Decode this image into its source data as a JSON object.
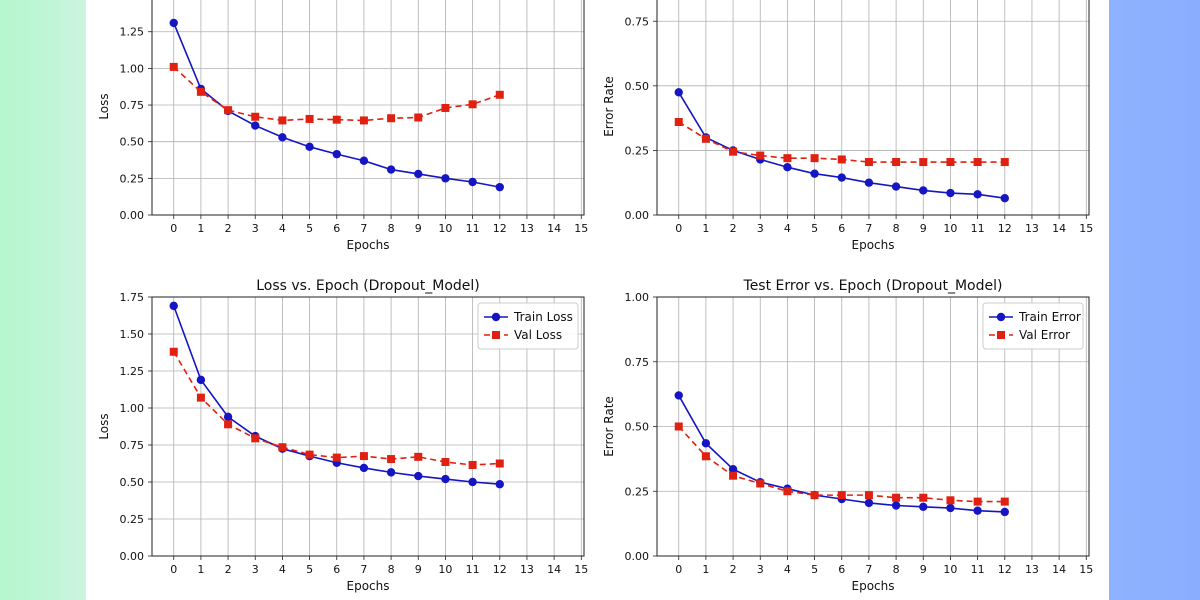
{
  "colors": {
    "train": "#1515c4",
    "val": "#e02010",
    "grid": "#b0b0b0"
  },
  "chart_data": [
    {
      "type": "line",
      "title": "",
      "xlabel": "Epochs",
      "ylabel": "Loss",
      "xlim": [
        -0.8,
        15.1
      ],
      "ylim": [
        0,
        1.48
      ],
      "xticks": [
        "0",
        "1",
        "2",
        "3",
        "4",
        "5",
        "6",
        "7",
        "8",
        "9",
        "10",
        "11",
        "12",
        "13",
        "14",
        "15"
      ],
      "yticks": [
        "0.00",
        "0.25",
        "0.50",
        "0.75",
        "1.00",
        "1.25"
      ],
      "grid": true,
      "legend": null,
      "x": [
        0,
        1,
        2,
        3,
        4,
        5,
        6,
        7,
        8,
        9,
        10,
        11,
        12
      ],
      "series": [
        {
          "key": "train",
          "values": [
            1.31,
            0.86,
            0.71,
            0.61,
            0.53,
            0.465,
            0.415,
            0.37,
            0.31,
            0.28,
            0.25,
            0.225,
            0.19
          ]
        },
        {
          "key": "val",
          "values": [
            1.01,
            0.84,
            0.715,
            0.67,
            0.645,
            0.655,
            0.65,
            0.645,
            0.66,
            0.665,
            0.73,
            0.755,
            0.82
          ]
        }
      ]
    },
    {
      "type": "line",
      "title": "",
      "xlabel": "Epochs",
      "ylabel": "Error Rate",
      "xlim": [
        -0.8,
        15.1
      ],
      "ylim": [
        0,
        0.84
      ],
      "xticks": [
        "0",
        "1",
        "2",
        "3",
        "4",
        "5",
        "6",
        "7",
        "8",
        "9",
        "10",
        "11",
        "12",
        "13",
        "14",
        "15"
      ],
      "yticks": [
        "0.00",
        "0.25",
        "0.50",
        "0.75"
      ],
      "grid": true,
      "legend": null,
      "x": [
        0,
        1,
        2,
        3,
        4,
        5,
        6,
        7,
        8,
        9,
        10,
        11,
        12
      ],
      "series": [
        {
          "key": "train",
          "values": [
            0.475,
            0.3,
            0.25,
            0.215,
            0.185,
            0.16,
            0.145,
            0.125,
            0.11,
            0.095,
            0.085,
            0.08,
            0.065
          ]
        },
        {
          "key": "val",
          "values": [
            0.36,
            0.295,
            0.245,
            0.23,
            0.22,
            0.22,
            0.215,
            0.205,
            0.205,
            0.205,
            0.205,
            0.205,
            0.205
          ]
        }
      ]
    },
    {
      "type": "line",
      "title": "Loss vs. Epoch (Dropout_Model)",
      "xlabel": "Epochs",
      "ylabel": "Loss",
      "xlim": [
        -0.8,
        15.1
      ],
      "ylim": [
        0,
        1.75
      ],
      "xticks": [
        "0",
        "1",
        "2",
        "3",
        "4",
        "5",
        "6",
        "7",
        "8",
        "9",
        "10",
        "11",
        "12",
        "13",
        "14",
        "15"
      ],
      "yticks": [
        "0.00",
        "0.25",
        "0.50",
        "0.75",
        "1.00",
        "1.25",
        "1.50",
        "1.75"
      ],
      "grid": true,
      "legend": "top-right",
      "x": [
        0,
        1,
        2,
        3,
        4,
        5,
        6,
        7,
        8,
        9,
        10,
        11,
        12
      ],
      "series": [
        {
          "key": "train",
          "name": "Train Loss",
          "values": [
            1.69,
            1.19,
            0.94,
            0.81,
            0.725,
            0.675,
            0.63,
            0.595,
            0.565,
            0.54,
            0.52,
            0.5,
            0.485
          ]
        },
        {
          "key": "val",
          "name": "Val Loss",
          "values": [
            1.38,
            1.07,
            0.89,
            0.795,
            0.735,
            0.685,
            0.665,
            0.675,
            0.655,
            0.67,
            0.635,
            0.615,
            0.625
          ]
        }
      ]
    },
    {
      "type": "line",
      "title": "Test Error vs. Epoch (Dropout_Model)",
      "xlabel": "Epochs",
      "ylabel": "Error Rate",
      "xlim": [
        -0.8,
        15.1
      ],
      "ylim": [
        0,
        1.0
      ],
      "xticks": [
        "0",
        "1",
        "2",
        "3",
        "4",
        "5",
        "6",
        "7",
        "8",
        "9",
        "10",
        "11",
        "12",
        "13",
        "14",
        "15"
      ],
      "yticks": [
        "0.00",
        "0.25",
        "0.50",
        "0.75",
        "1.00"
      ],
      "grid": true,
      "legend": "top-right",
      "x": [
        0,
        1,
        2,
        3,
        4,
        5,
        6,
        7,
        8,
        9,
        10,
        11,
        12
      ],
      "series": [
        {
          "key": "train",
          "name": "Train Error",
          "values": [
            0.62,
            0.435,
            0.335,
            0.285,
            0.26,
            0.235,
            0.22,
            0.205,
            0.195,
            0.19,
            0.185,
            0.175,
            0.17
          ]
        },
        {
          "key": "val",
          "name": "Val Error",
          "values": [
            0.5,
            0.385,
            0.31,
            0.28,
            0.25,
            0.235,
            0.235,
            0.235,
            0.225,
            0.225,
            0.215,
            0.21,
            0.21
          ]
        }
      ]
    }
  ]
}
